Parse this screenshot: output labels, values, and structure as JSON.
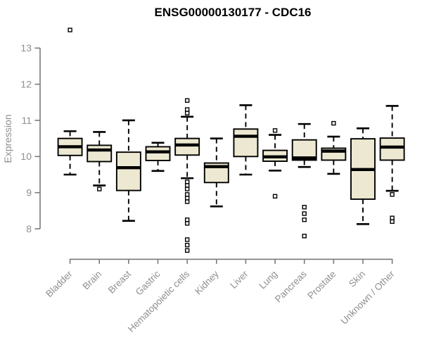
{
  "chart_data": {
    "type": "box",
    "title": "ENSG00000130177 - CDC16",
    "ylabel": "Expression",
    "xlabel": "",
    "ylim": [
      8,
      13
    ],
    "yticks": [
      8,
      9,
      10,
      11,
      12,
      13
    ],
    "grid": false,
    "legend": null,
    "categories": [
      "Bladder",
      "Brain",
      "Breast",
      "Gastric",
      "Hematopoietic cells",
      "Kidney",
      "Liver",
      "Lung",
      "Pancreas",
      "Prostate",
      "Skin",
      "Unknown / Other"
    ],
    "series": [
      {
        "name": "Bladder",
        "whisker_low": 9.5,
        "q1": 10.03,
        "median": 10.27,
        "q3": 10.5,
        "whisker_high": 10.7,
        "outliers": [
          13.5
        ]
      },
      {
        "name": "Brain",
        "whisker_low": 9.2,
        "q1": 9.86,
        "median": 10.18,
        "q3": 10.31,
        "whisker_high": 10.68,
        "outliers": [
          9.1
        ]
      },
      {
        "name": "Breast",
        "whisker_low": 8.22,
        "q1": 9.06,
        "median": 9.69,
        "q3": 10.12,
        "whisker_high": 11.0,
        "outliers": []
      },
      {
        "name": "Gastric",
        "whisker_low": 9.6,
        "q1": 9.89,
        "median": 10.13,
        "q3": 10.27,
        "whisker_high": 10.38,
        "outliers": []
      },
      {
        "name": "Hematopoietic cells",
        "whisker_low": 9.4,
        "q1": 10.04,
        "median": 10.32,
        "q3": 10.5,
        "whisker_high": 11.1,
        "outliers": [
          11.55,
          11.3,
          11.2,
          9.3,
          9.2,
          9.1,
          8.95,
          8.85,
          8.75,
          8.25,
          8.15,
          7.7,
          7.55,
          7.4
        ]
      },
      {
        "name": "Kidney",
        "whisker_low": 8.62,
        "q1": 9.28,
        "median": 9.72,
        "q3": 9.82,
        "whisker_high": 10.5,
        "outliers": []
      },
      {
        "name": "Liver",
        "whisker_low": 9.5,
        "q1": 10.0,
        "median": 10.56,
        "q3": 10.76,
        "whisker_high": 11.42,
        "outliers": []
      },
      {
        "name": "Lung",
        "whisker_low": 9.61,
        "q1": 9.87,
        "median": 9.99,
        "q3": 10.17,
        "whisker_high": 10.6,
        "outliers": [
          10.72,
          8.9
        ]
      },
      {
        "name": "Pancreas",
        "whisker_low": 9.71,
        "q1": 9.9,
        "median": 9.96,
        "q3": 10.46,
        "whisker_high": 10.9,
        "outliers": [
          8.6,
          8.42,
          8.25,
          7.8
        ]
      },
      {
        "name": "Prostate",
        "whisker_low": 9.52,
        "q1": 9.9,
        "median": 10.15,
        "q3": 10.23,
        "whisker_high": 10.55,
        "outliers": [
          10.92
        ]
      },
      {
        "name": "Skin",
        "whisker_low": 8.13,
        "q1": 8.82,
        "median": 9.64,
        "q3": 10.49,
        "whisker_high": 10.78,
        "outliers": []
      },
      {
        "name": "Unknown / Other",
        "whisker_low": 9.05,
        "q1": 9.9,
        "median": 10.26,
        "q3": 10.51,
        "whisker_high": 11.4,
        "outliers": [
          8.95,
          8.3,
          8.2
        ]
      }
    ],
    "colors": {
      "box_fill": "#EDE8D1",
      "box_stroke": "#000000",
      "median": "#000000",
      "whisker": "#000000",
      "axis": "#7a7a7a",
      "tick_label": "#8f8f8f",
      "title": "#000000",
      "background": "#ffffff"
    }
  }
}
